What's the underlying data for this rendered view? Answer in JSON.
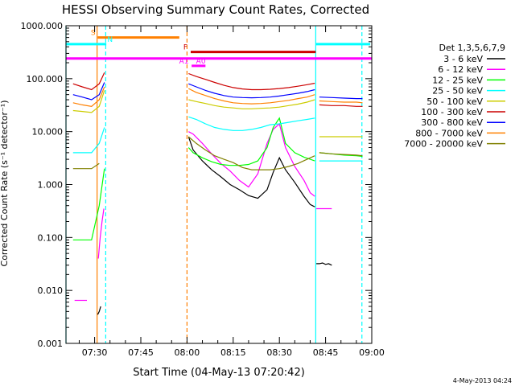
{
  "chart_data": {
    "type": "line",
    "title": "HESSI Observing Summary Count Rates, Corrected",
    "xlabel": "Start Time (04-May-13 07:20:42)",
    "ylabel": "Corrected Count Rate (s⁻¹ detector⁻¹)",
    "yscale": "log",
    "xlim": [
      20.7,
      120
    ],
    "ylim": [
      0.001,
      1000
    ],
    "x_units": "minutes after 07:00 UT",
    "x_ticks": [
      {
        "value": 30,
        "label": "07:30"
      },
      {
        "value": 45,
        "label": "07:45"
      },
      {
        "value": 60,
        "label": "08:00"
      },
      {
        "value": 75,
        "label": "08:15"
      },
      {
        "value": 90,
        "label": "08:30"
      },
      {
        "value": 105,
        "label": "08:45"
      },
      {
        "value": 120,
        "label": "09:00"
      }
    ],
    "y_ticks": [
      {
        "value": 0.001,
        "label": "0.001"
      },
      {
        "value": 0.01,
        "label": "0.010"
      },
      {
        "value": 0.1,
        "label": "0.100"
      },
      {
        "value": 1,
        "label": "1.000"
      },
      {
        "value": 10,
        "label": "10.000"
      },
      {
        "value": 100,
        "label": "100.000"
      },
      {
        "value": 1000,
        "label": "1000.000"
      }
    ],
    "legend": {
      "title": "Det 1,3,5,6,7,9",
      "placement": "right"
    },
    "series": [
      {
        "name": "3 - 6 keV",
        "color": "#000000",
        "segments": [
          {
            "x": [
              31.0,
              31.5,
              32.0
            ],
            "y": [
              0.0035,
              0.004,
              0.005
            ]
          },
          {
            "x": [
              60.5,
              62,
              65,
              68,
              71,
              74,
              77,
              80,
              83,
              86,
              88,
              90,
              92,
              95,
              98,
              100,
              101.5
            ],
            "y": [
              8,
              4.5,
              2.8,
              1.9,
              1.4,
              1.0,
              0.8,
              0.62,
              0.55,
              0.8,
              1.7,
              3.2,
              1.9,
              1.1,
              0.6,
              0.42,
              0.38
            ]
          },
          {
            "x": [
              102,
              103,
              104,
              105,
              106,
              107
            ],
            "y": [
              0.032,
              0.032,
              0.033,
              0.031,
              0.032,
              0.03
            ]
          }
        ]
      },
      {
        "name": "6 - 12 keV",
        "color": "#ff00ff",
        "segments": [
          {
            "x": [
              23.5,
              25.5,
              27.5
            ],
            "y": [
              0.0065,
              0.0065,
              0.0065
            ]
          },
          {
            "x": [
              31.2,
              31.8,
              32.4,
              33.0
            ],
            "y": [
              0.04,
              0.1,
              0.2,
              0.35
            ]
          },
          {
            "x": [
              60.5,
              62,
              65,
              68,
              71,
              74,
              77,
              80,
              83,
              86,
              88,
              90,
              92,
              95,
              98,
              100,
              101.5
            ],
            "y": [
              10,
              9,
              6,
              3.8,
              2.5,
              1.8,
              1.2,
              0.9,
              1.6,
              6,
              11,
              14,
              5,
              2.2,
              1.2,
              0.7,
              0.6
            ]
          },
          {
            "x": [
              102,
              104,
              106,
              107
            ],
            "y": [
              0.35,
              0.35,
              0.35,
              0.35
            ]
          }
        ]
      },
      {
        "name": "12 - 25 keV",
        "color": "#00ff00",
        "segments": [
          {
            "x": [
              23,
              26,
              29,
              31.5,
              33.2
            ],
            "y": [
              0.09,
              0.09,
              0.09,
              0.4,
              2
            ]
          },
          {
            "x": [
              60.5,
              62,
              65,
              68,
              71,
              74,
              77,
              80,
              83,
              86,
              88,
              90,
              92,
              95,
              98,
              101.5
            ],
            "y": [
              5,
              4,
              3.2,
              2.7,
              2.4,
              2.3,
              2.3,
              2.4,
              2.8,
              5,
              12,
              18,
              6,
              4,
              3.3,
              2.8
            ]
          },
          {
            "x": [
              103,
              107,
              111,
              115,
              117
            ],
            "y": [
              4,
              3.8,
              3.6,
              3.5,
              3.4
            ]
          }
        ]
      },
      {
        "name": "25 - 50 keV",
        "color": "#00ffff",
        "segments": [
          {
            "x": [
              23,
              26,
              29,
              31.5,
              33.2
            ],
            "y": [
              4,
              4,
              4,
              6,
              12
            ]
          },
          {
            "x": [
              60.5,
              63,
              66,
              69,
              72,
              75,
              78,
              81,
              84,
              87,
              90,
              93,
              96,
              99,
              101.5
            ],
            "y": [
              19,
              17,
              14,
              12,
              11,
              10.5,
              10.5,
              11,
              12,
              13.5,
              14,
              15,
              16,
              17,
              18
            ]
          },
          {
            "x": [
              103,
              107,
              111,
              115,
              117
            ],
            "y": [
              2.8,
              2.8,
              2.8,
              2.8,
              2.8
            ]
          }
        ]
      },
      {
        "name": "50 - 100 keV",
        "color": "#cccc00",
        "segments": [
          {
            "x": [
              23,
              26,
              29,
              31.5,
              33.2
            ],
            "y": [
              25,
              24,
              23,
              30,
              60
            ]
          },
          {
            "x": [
              60.5,
              63,
              66,
              69,
              72,
              75,
              78,
              81,
              84,
              87,
              90,
              93,
              96,
              99,
              101.5
            ],
            "y": [
              40,
              37,
              34,
              31,
              29,
              28,
              27,
              27,
              27.5,
              28,
              29,
              31,
              33,
              36,
              40
            ]
          },
          {
            "x": [
              103,
              107,
              111,
              115,
              117
            ],
            "y": [
              8,
              8,
              8,
              8,
              8
            ]
          }
        ]
      },
      {
        "name": "100 - 300 keV",
        "color": "#cc0000",
        "segments": [
          {
            "x": [
              23,
              26,
              29,
              31.5,
              33.2
            ],
            "y": [
              80,
              70,
              62,
              80,
              130
            ]
          },
          {
            "x": [
              60.5,
              63,
              66,
              69,
              72,
              75,
              78,
              81,
              84,
              87,
              90,
              93,
              96,
              99,
              101.5
            ],
            "y": [
              125,
              110,
              97,
              85,
              75,
              68,
              64,
              62,
              62,
              63,
              65,
              68,
              72,
              77,
              82
            ]
          },
          {
            "x": [
              103,
              107,
              111,
              115,
              117
            ],
            "y": [
              32,
              31,
              31,
              30,
              30
            ]
          }
        ]
      },
      {
        "name": "300 - 800 keV",
        "color": "#0000ff",
        "segments": [
          {
            "x": [
              23,
              26,
              29,
              31.5,
              33.2
            ],
            "y": [
              50,
              45,
              40,
              50,
              85
            ]
          },
          {
            "x": [
              60.5,
              63,
              66,
              69,
              72,
              75,
              78,
              81,
              84,
              87,
              90,
              93,
              96,
              99,
              101.5
            ],
            "y": [
              80,
              70,
              60,
              53,
              48,
              45,
              44,
              43.5,
              44,
              45,
              47,
              50,
              53,
              57,
              62
            ]
          },
          {
            "x": [
              103,
              107,
              111,
              115,
              117
            ],
            "y": [
              45,
              44,
              43,
              42,
              42
            ]
          }
        ]
      },
      {
        "name": "800 - 7000 keV",
        "color": "#ff8000",
        "segments": [
          {
            "x": [
              23,
              26,
              29,
              31.5,
              33.2
            ],
            "y": [
              35,
              32,
              30,
              40,
              70
            ]
          },
          {
            "x": [
              60.5,
              63,
              66,
              69,
              72,
              75,
              78,
              81,
              84,
              87,
              90,
              93,
              96,
              99,
              101.5
            ],
            "y": [
              65,
              55,
              48,
              42,
              38,
              35,
              34,
              33.5,
              34,
              35,
              37,
              39,
              42,
              45,
              50
            ]
          },
          {
            "x": [
              103,
              107,
              111,
              115,
              117
            ],
            "y": [
              38,
              37,
              36,
              36,
              35
            ]
          }
        ]
      },
      {
        "name": "7000 - 20000 keV",
        "color": "#808000",
        "segments": [
          {
            "x": [
              23,
              26,
              29,
              31.5
            ],
            "y": [
              2,
              2,
              2,
              2.5
            ]
          },
          {
            "x": [
              60.5,
              63,
              66,
              69,
              72,
              75,
              78,
              81,
              84,
              87,
              90,
              93,
              96,
              99,
              101.5
            ],
            "y": [
              8,
              6,
              4.5,
              3.5,
              3,
              2.6,
              2.1,
              1.9,
              1.9,
              1.9,
              2,
              2.2,
              2.5,
              3,
              3.5
            ]
          },
          {
            "x": [
              103,
              107,
              111,
              115,
              117
            ],
            "y": [
              4,
              3.8,
              3.7,
              3.6,
              3.5
            ]
          }
        ]
      }
    ],
    "flag_bars": [
      {
        "label": "S",
        "x": [
          31.0,
          57.5
        ],
        "y": 600,
        "color": "#ff8000",
        "label_x": 29.5
      },
      {
        "label": "N",
        "x": [
          20.7,
          33.8
        ],
        "y": 450,
        "color": "#00ffff",
        "label_x": 35.0
      },
      {
        "label": "F",
        "x": [
          61.2,
          101.8
        ],
        "y": 320,
        "color": "#cc0000",
        "label_x": 59.5
      },
      {
        "label": "",
        "x": [
          101.8,
          119.5
        ],
        "y": 450,
        "color": "#00ffff",
        "label_x": null
      },
      {
        "label": "",
        "x": [
          20.7,
          120
        ],
        "y": 240,
        "color": "#ff00ff",
        "label_x": null
      },
      {
        "label": "A0",
        "x": [
          61.5,
          66.0
        ],
        "y": 175,
        "color": "#ff00ff",
        "label_x": 64.5
      },
      {
        "label": "A1",
        "x": [
          null,
          null
        ],
        "y": 175,
        "color": "#ff00ff",
        "label_x": 59.0
      }
    ],
    "vertical_lines": [
      {
        "x": 30.8,
        "color": "#ff8000",
        "style": "solid"
      },
      {
        "x": 33.6,
        "color": "#00ffff",
        "style": "dashed"
      },
      {
        "x": 60.0,
        "color": "#ff8000",
        "style": "dashed"
      },
      {
        "x": 101.8,
        "color": "#00ffff",
        "style": "solid"
      },
      {
        "x": 116.8,
        "color": "#00ffff",
        "style": "dashed"
      },
      {
        "x": 20.7,
        "color": "#00ffff",
        "style": "solid"
      }
    ],
    "grid": false
  },
  "footer": {
    "timestamp": "4-May-2013 04:24"
  }
}
